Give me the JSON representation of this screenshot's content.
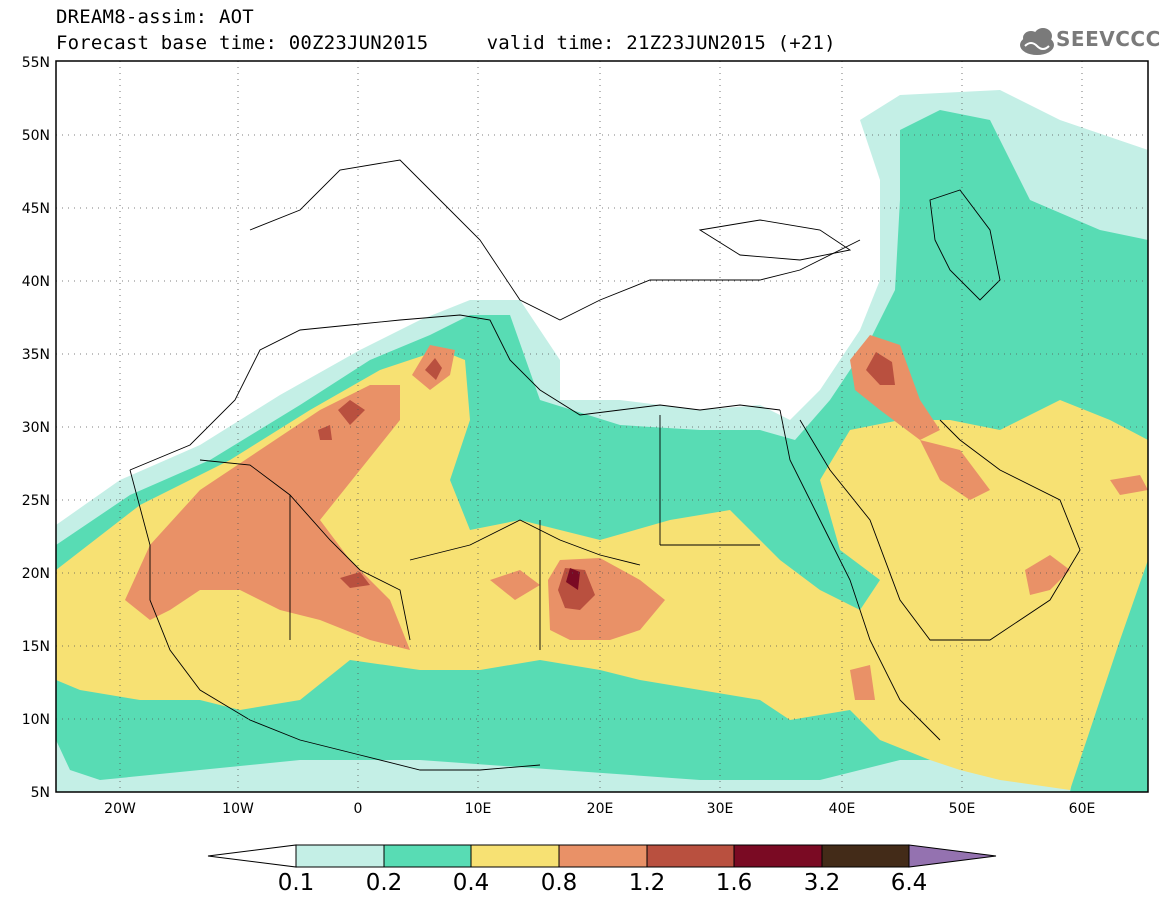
{
  "header": {
    "line1": "DREAM8-assim: AOT",
    "line2": "Forecast base time: 00Z23JUN2015     valid time: 21Z23JUN2015 (+21)",
    "logo_text": "SEEVCCC"
  },
  "map": {
    "lat_labels": [
      "55N",
      "50N",
      "45N",
      "40N",
      "35N",
      "30N",
      "25N",
      "20N",
      "15N",
      "10N",
      "5N"
    ],
    "lon_labels": [
      "20W",
      "10W",
      "0",
      "10E",
      "20E",
      "30E",
      "40E",
      "50E",
      "60E"
    ],
    "lat_range": [
      5,
      55
    ],
    "lon_range": [
      -25,
      65
    ],
    "grid": "dotted"
  },
  "colorbar": {
    "labels": [
      "0.1",
      "0.2",
      "0.4",
      "0.8",
      "1.2",
      "1.6",
      "3.2",
      "6.4"
    ],
    "colors": [
      "#ffffff",
      "#c4efe6",
      "#58dcb4",
      "#f7e173",
      "#e99167",
      "#b9503f",
      "#7a0a23",
      "#432b18",
      "#9472b0"
    ]
  }
}
